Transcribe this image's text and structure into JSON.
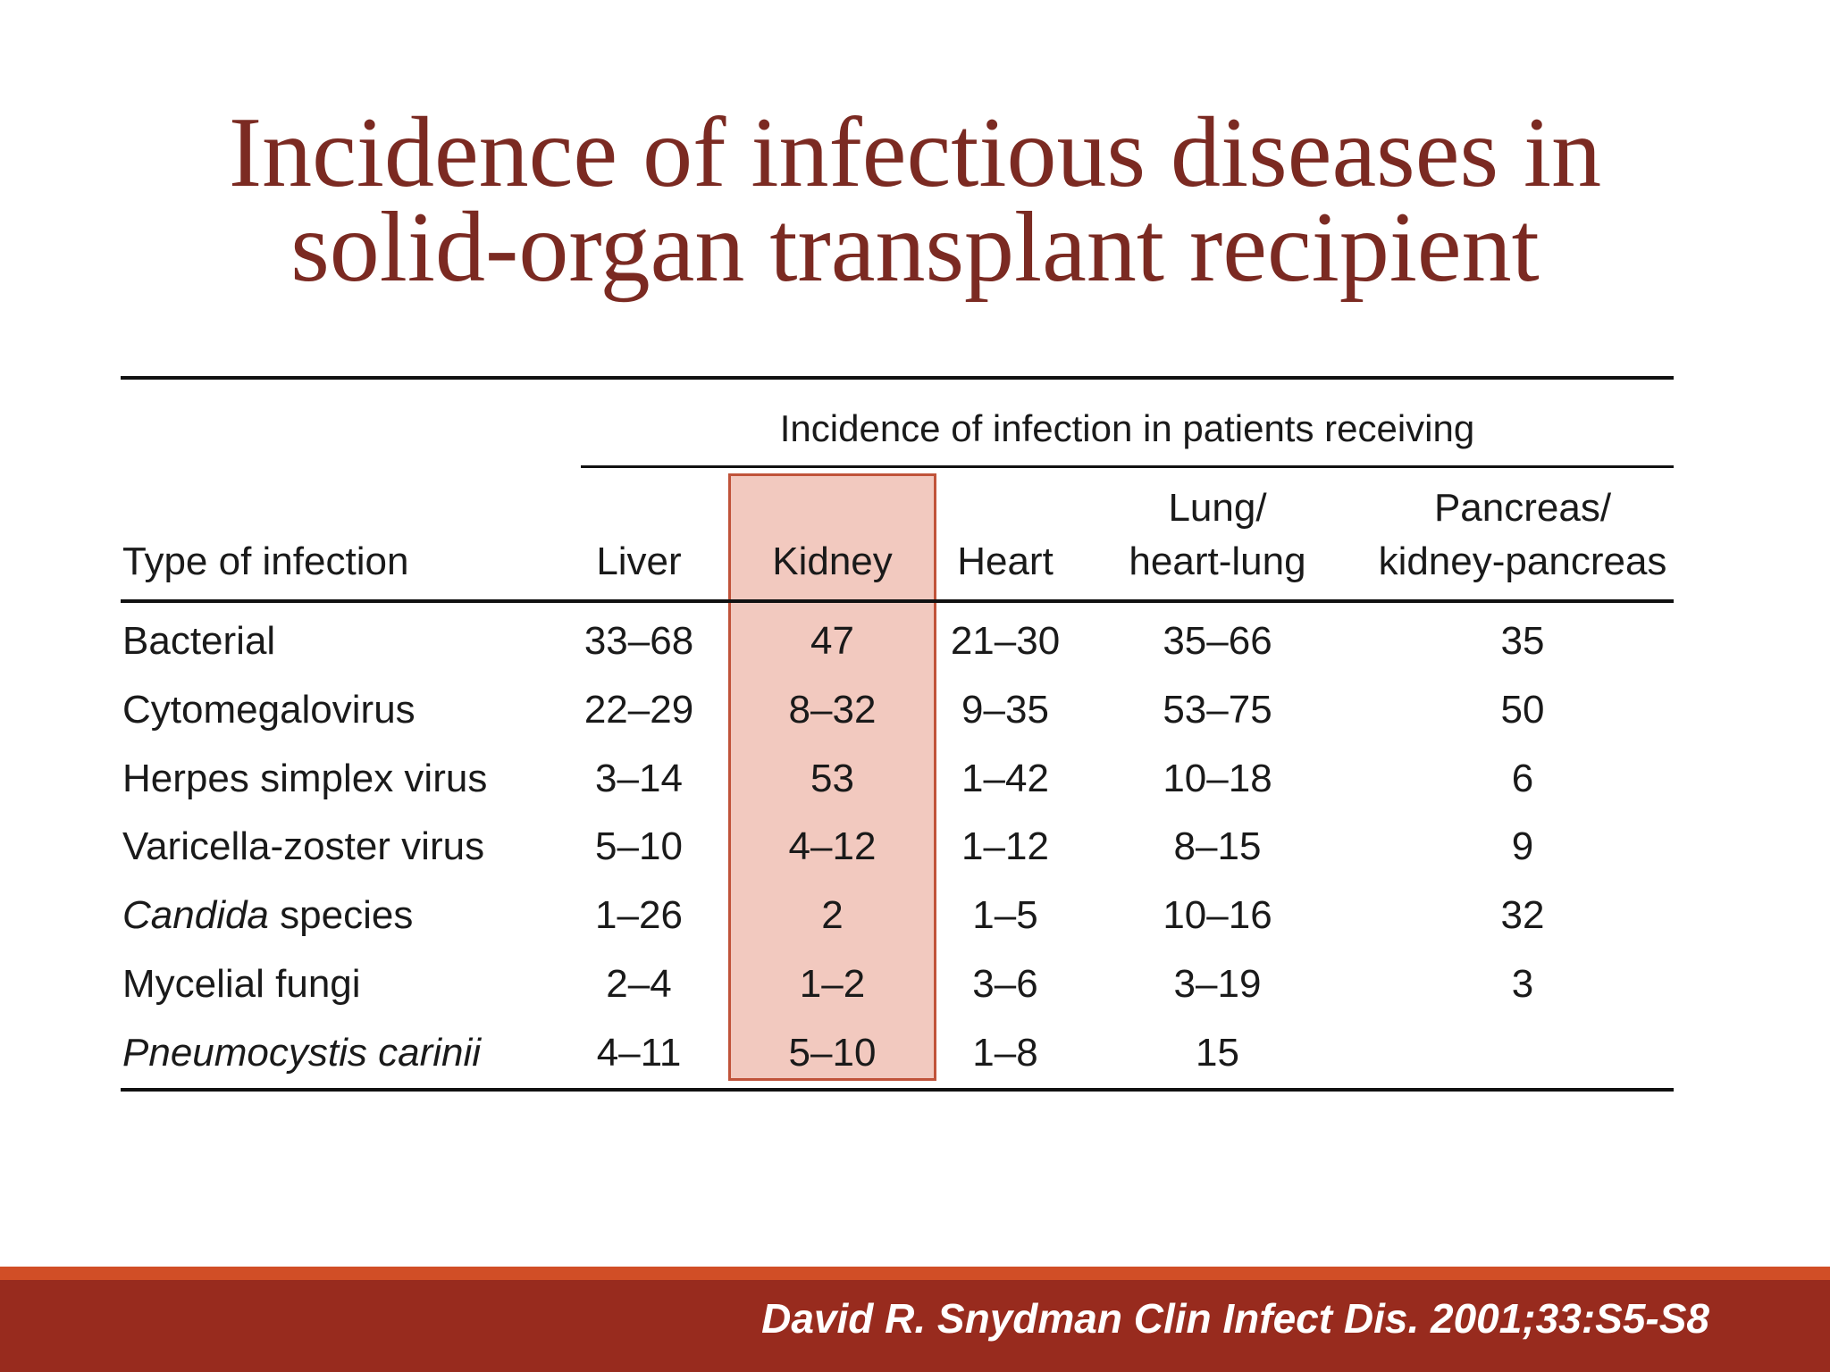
{
  "title": {
    "line1": "Incidence of infectious diseases in",
    "line2": "solid-organ transplant recipient"
  },
  "table": {
    "group_header": "Incidence of infection in patients receiving",
    "columns": {
      "type": "Type of infection",
      "liver": "Liver",
      "kidney": "Kidney",
      "heart": "Heart",
      "lung_1": "Lung/",
      "lung_2": "heart-lung",
      "pancreas_1": "Pancreas/",
      "pancreas_2": "kidney-pancreas"
    },
    "rows": [
      {
        "label_prefix": "",
        "label_italic": "",
        "label": "Bacterial",
        "liver": "33–68",
        "kidney": "47",
        "heart": "21–30",
        "lung": "35–66",
        "pancreas": "35"
      },
      {
        "label_prefix": "",
        "label_italic": "",
        "label": "Cytomegalovirus",
        "liver": "22–29",
        "kidney": "8–32",
        "heart": "9–35",
        "lung": "53–75",
        "pancreas": "50"
      },
      {
        "label_prefix": "",
        "label_italic": "",
        "label": "Herpes simplex virus",
        "liver": "3–14",
        "kidney": "53",
        "heart": "1–42",
        "lung": "10–18",
        "pancreas": "6"
      },
      {
        "label_prefix": "",
        "label_italic": "",
        "label": "Varicella-zoster virus",
        "liver": "5–10",
        "kidney": "4–12",
        "heart": "1–12",
        "lung": "8–15",
        "pancreas": "9"
      },
      {
        "label_prefix": "",
        "label_italic": "Candida",
        "label": " species",
        "liver": "1–26",
        "kidney": "2",
        "heart": "1–5",
        "lung": "10–16",
        "pancreas": "32"
      },
      {
        "label_prefix": "",
        "label_italic": "",
        "label": "Mycelial fungi",
        "liver": "2–4",
        "kidney": "1–2",
        "heart": "3–6",
        "lung": "3–19",
        "pancreas": "3"
      },
      {
        "label_prefix": "",
        "label_italic": "Pneumocystis carinii",
        "label": "",
        "liver": "4–11",
        "kidney": "5–10",
        "heart": "1–8",
        "lung": "15",
        "pancreas": ""
      }
    ]
  },
  "citation": "David R. Snydman Clin Infect Dis. 2001;33:S5-S8",
  "colors": {
    "title": "#7b2a22",
    "highlight_fill": "#f2c9bf",
    "highlight_border": "#c0533a",
    "footer_accent": "#d14e26",
    "footer_bar": "#982b1e"
  }
}
